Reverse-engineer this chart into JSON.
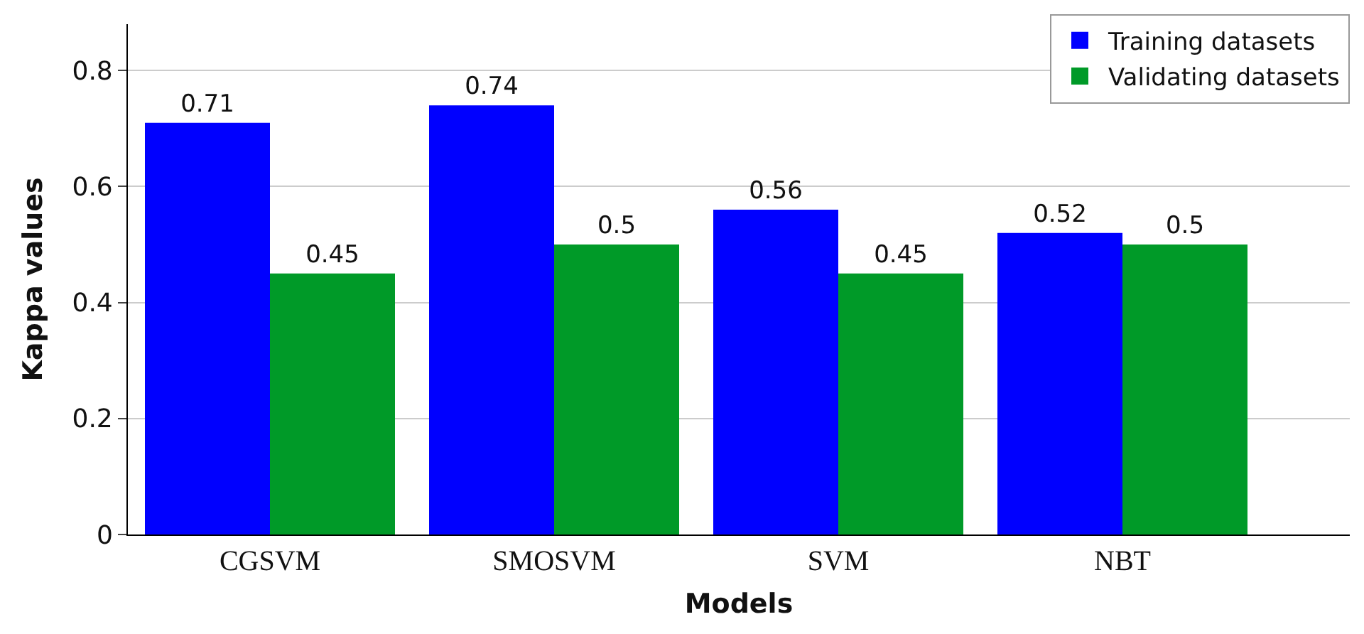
{
  "chart_data": {
    "type": "bar",
    "xlabel": "Models",
    "ylabel": "Kappa values",
    "categories": [
      "CGSVM",
      "SMOSVM",
      "SVM",
      "NBT"
    ],
    "series": [
      {
        "name": "Training datasets",
        "color": "#0000ff",
        "values": [
          0.71,
          0.74,
          0.56,
          0.52
        ]
      },
      {
        "name": "Validating datasets",
        "color": "#009a28",
        "values": [
          0.45,
          0.5,
          0.45,
          0.5
        ]
      }
    ],
    "ylim": [
      0,
      0.88
    ],
    "yticks": [
      0,
      0.2,
      0.4,
      0.6,
      0.8
    ],
    "grid": "y",
    "legend": "top right",
    "data_labels": true
  }
}
